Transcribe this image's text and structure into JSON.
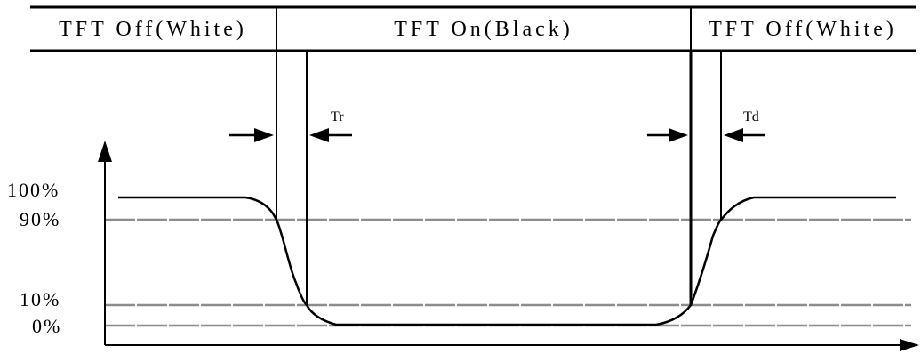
{
  "header": {
    "left_label": "TFT Off(White)",
    "middle_label": "TFT On(Black)",
    "right_label": "TFT Off(White)"
  },
  "levels": {
    "l100": "100%",
    "l90": "90%",
    "l10": "10%",
    "l0": "0%"
  },
  "timings": {
    "rise": "Tr",
    "decay": "Td"
  },
  "colors": {
    "line": "#000000",
    "level_line": "#8c8c8c",
    "background": "#ffffff"
  }
}
